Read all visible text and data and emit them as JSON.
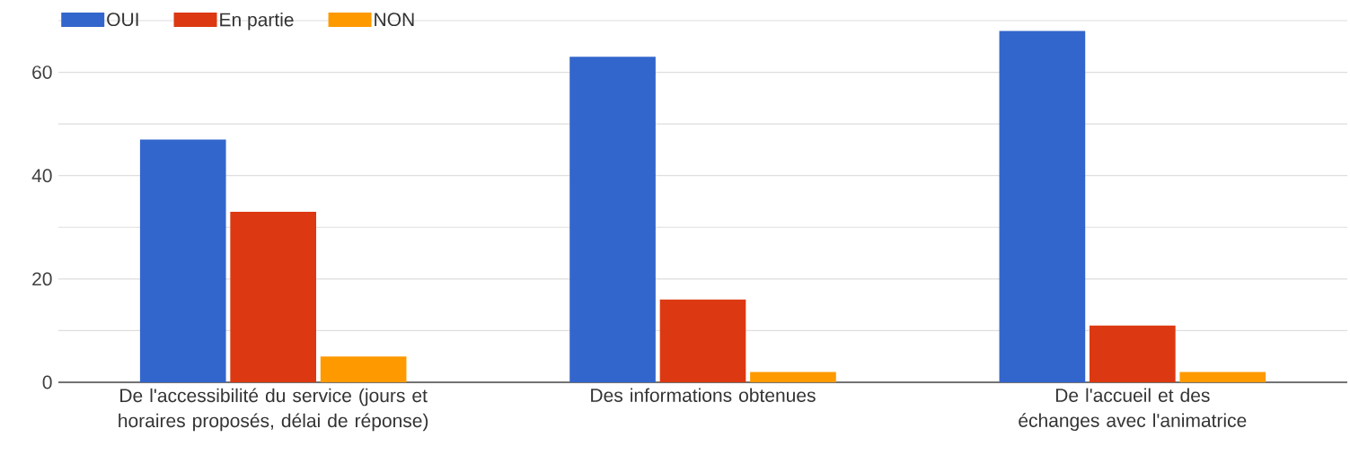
{
  "chart_data": {
    "type": "bar",
    "categories": [
      "De l'accessibilité du service (jours et horaires proposés, délai de réponse)",
      "Des informations obtenues",
      "De l'accueil et des échanges avec l'animatrice"
    ],
    "series": [
      {
        "name": "OUI",
        "color": "#3366cc",
        "values": [
          47,
          63,
          68
        ]
      },
      {
        "name": "En partie",
        "color": "#dc3912",
        "values": [
          33,
          16,
          11
        ]
      },
      {
        "name": "NON",
        "color": "#ff9900",
        "values": [
          5,
          2,
          2
        ]
      }
    ],
    "ylim": [
      0,
      70
    ],
    "yticks": [
      0,
      {
        "value": 10,
        "label": null
      },
      20,
      {
        "value": 30,
        "label": null
      },
      40,
      {
        "value": 50,
        "label": null
      },
      60,
      {
        "value": 70,
        "label": null
      }
    ],
    "grid": "y",
    "legend": "top left"
  }
}
